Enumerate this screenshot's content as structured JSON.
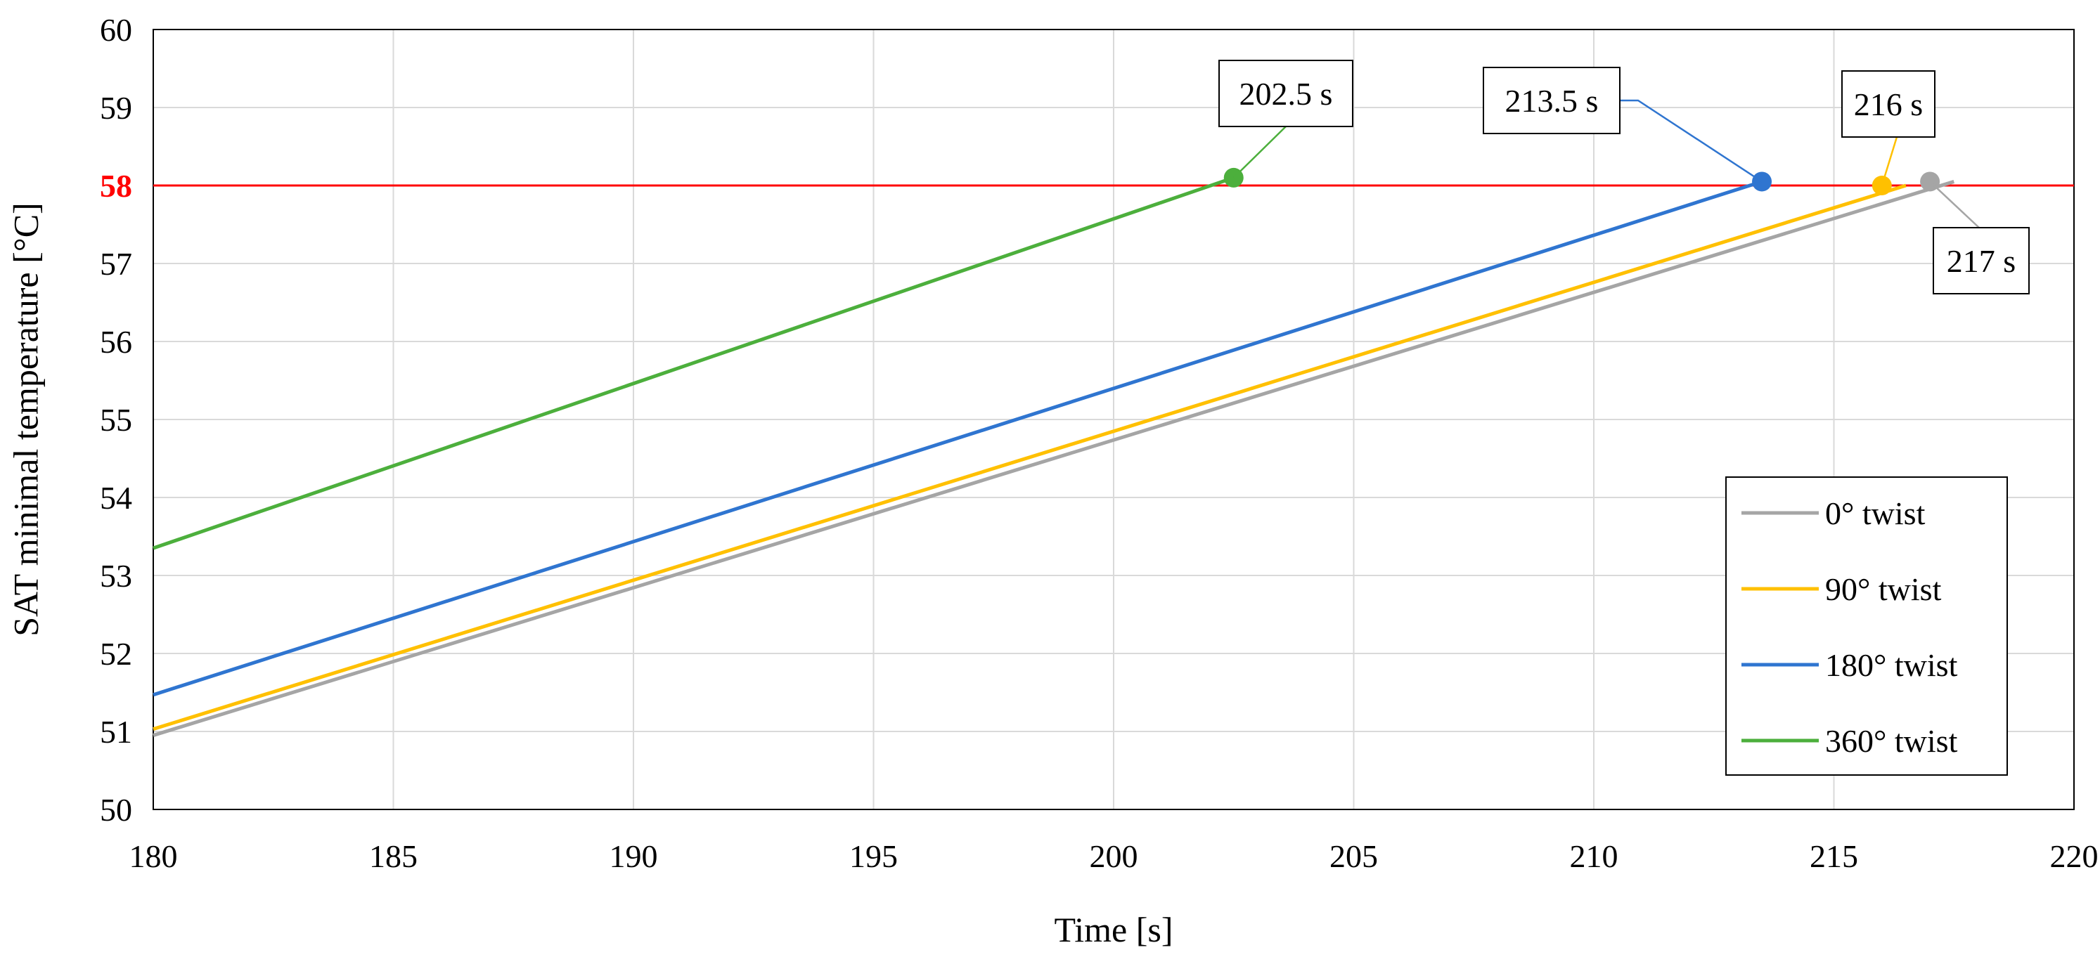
{
  "chart_data": {
    "type": "line",
    "title": "",
    "xlabel": "Time [s]",
    "ylabel": "SAT minimal temperature [°C]",
    "xlim": [
      180,
      220
    ],
    "ylim": [
      50,
      60
    ],
    "x_ticks": [
      180,
      185,
      190,
      195,
      200,
      205,
      210,
      215,
      220
    ],
    "y_ticks": [
      50,
      51,
      52,
      53,
      54,
      55,
      56,
      57,
      59,
      60
    ],
    "grid": true,
    "legend_position": "bottom-right",
    "threshold": {
      "y": 58,
      "label": "58",
      "color": "#ff0000"
    },
    "series": [
      {
        "name": "0° twist",
        "color": "#a5a5a5",
        "x": [
          180,
          217.5
        ],
        "y": [
          50.95,
          58.05
        ],
        "marker": {
          "x": 217,
          "y": 58.05
        }
      },
      {
        "name": "90° twist",
        "color": "#ffc000",
        "x": [
          180,
          216.5
        ],
        "y": [
          51.03,
          58.0
        ],
        "marker": {
          "x": 216,
          "y": 58.0
        }
      },
      {
        "name": "180° twist",
        "color": "#2f75d0",
        "x": [
          180,
          213.5
        ],
        "y": [
          51.47,
          58.05
        ],
        "marker": {
          "x": 213.5,
          "y": 58.05
        }
      },
      {
        "name": "360° twist",
        "color": "#4caf3c",
        "x": [
          180,
          202.5
        ],
        "y": [
          53.35,
          58.1
        ],
        "marker": {
          "x": 202.5,
          "y": 58.1
        }
      }
    ],
    "annotations": [
      {
        "text": "202.5 s",
        "series": 3
      },
      {
        "text": "213.5 s",
        "series": 2
      },
      {
        "text": "216 s",
        "series": 1
      },
      {
        "text": "217 s",
        "series": 0
      }
    ]
  }
}
